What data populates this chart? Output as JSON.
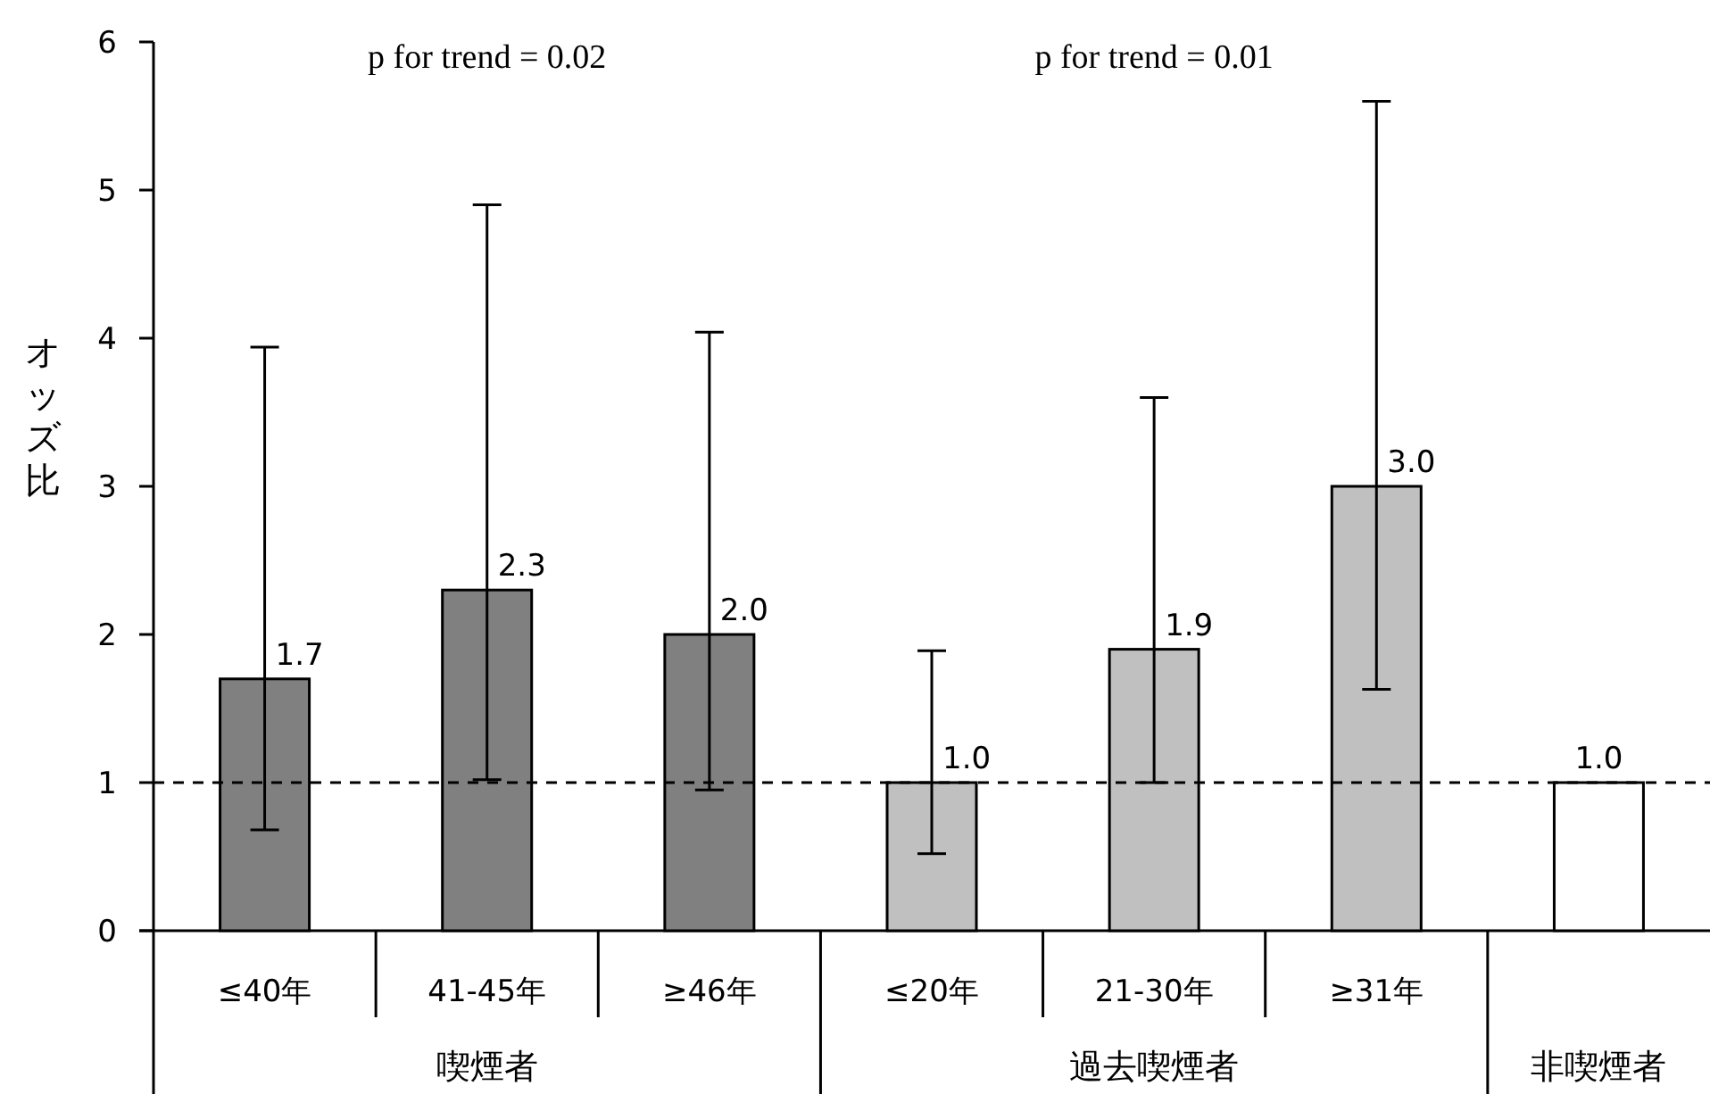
{
  "chart_data": {
    "type": "bar",
    "ylabel": "オッズ比",
    "categories": [
      "≤40年",
      "41-45年",
      "≥46年",
      "≤20年",
      "21-30年",
      "≥31年",
      null
    ],
    "values": [
      1.7,
      2.3,
      2.0,
      1.0,
      1.9,
      3.0,
      1.0
    ],
    "colors": [
      "#808080",
      "#808080",
      "#808080",
      "#c0c0c0",
      "#c0c0c0",
      "#c0c0c0",
      "#ffffff"
    ],
    "errors": [
      [
        0.68,
        3.94
      ],
      [
        1.02,
        4.9
      ],
      [
        0.95,
        4.04
      ],
      [
        0.52,
        1.89
      ],
      [
        1.0,
        3.6
      ],
      [
        1.63,
        5.6
      ],
      null
    ],
    "value_labels": [
      "1.7",
      "2.3",
      "2.0",
      "1.0",
      "1.9",
      "3.0",
      "1.0"
    ],
    "ylim": [
      0,
      6
    ],
    "yticks": [
      0,
      1,
      2,
      3,
      4,
      5,
      6
    ],
    "grid": false,
    "ref_lines": [
      {
        "axis": "y",
        "value": 1.0,
        "line_style": "dashed"
      }
    ],
    "annotations": [
      "p for trend = 0.02",
      "p for trend = 0.01",
      "喫煙者",
      "過去喫煙者",
      "非喫煙者"
    ]
  }
}
